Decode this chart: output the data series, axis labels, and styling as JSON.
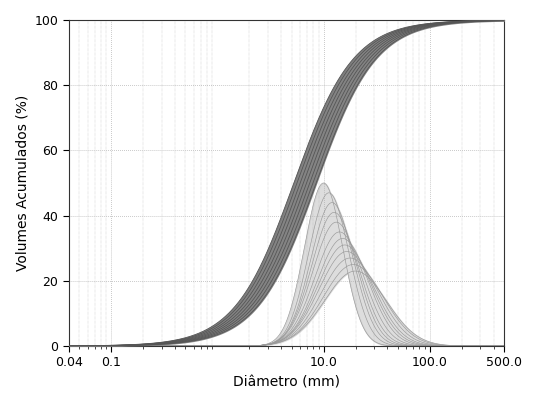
{
  "title": "",
  "xlabel": "Diâmetro (mm)",
  "ylabel": "Volumes Acumulados (%)",
  "xlim": [
    0.04,
    500.0
  ],
  "ylim": [
    0,
    100
  ],
  "yticks": [
    0,
    20,
    40,
    60,
    80,
    100
  ],
  "xtick_labels": [
    "0.04",
    "0.1",
    "10.0",
    "100.0",
    "500.0"
  ],
  "xtick_values": [
    0.04,
    0.1,
    10.0,
    100.0,
    500.0
  ],
  "background_color": "#ffffff",
  "grid_color": "#aaaaaa",
  "cumulative_color": "#555555",
  "cumulative_fill_color": "#777777",
  "frequency_fill_color": "#cccccc",
  "frequency_line_color": "#999999",
  "n_cumulative": 8,
  "n_frequency": 12,
  "cum_log_centers": [
    0.72,
    0.75,
    0.78,
    0.81,
    0.84,
    0.87,
    0.9,
    0.93
  ],
  "cum_log_spreads": [
    0.28,
    0.28,
    0.28,
    0.28,
    0.28,
    0.28,
    0.28,
    0.28
  ],
  "freq_log_centers": [
    1.0,
    1.05,
    1.08,
    1.1,
    1.12,
    1.15,
    1.18,
    1.2,
    1.22,
    1.25,
    1.28,
    1.3
  ],
  "freq_log_spreads": [
    0.18,
    0.19,
    0.2,
    0.21,
    0.22,
    0.23,
    0.24,
    0.25,
    0.26,
    0.27,
    0.28,
    0.29
  ],
  "freq_peaks": [
    50,
    47,
    44,
    41,
    38,
    35,
    33,
    31,
    29,
    27,
    25,
    23
  ]
}
